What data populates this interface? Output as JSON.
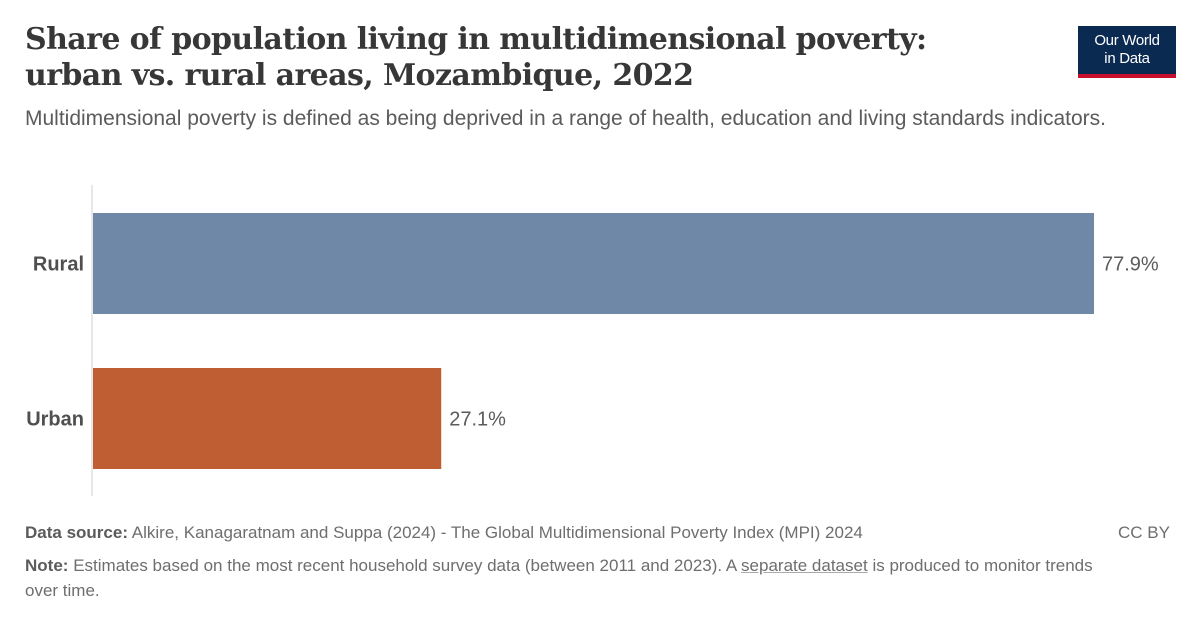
{
  "header": {
    "title": "Share of population living in multidimensional poverty: urban vs. rural areas, Mozambique, 2022",
    "subtitle": "Multidimensional poverty is defined as being deprived in a range of health, education and living standards indicators."
  },
  "logo": {
    "line1": "Our World",
    "line2": "in Data"
  },
  "footer": {
    "source_label": "Data source:",
    "source_text": "Alkire, Kanagaratnam and Suppa (2024) - The Global Multidimensional Poverty Index (MPI) 2024",
    "license": "CC BY",
    "note_label": "Note:",
    "note_text_before": "Estimates based on the most recent household survey data (between 2011 and 2023). A",
    "note_link": "separate dataset",
    "note_text_after": "is produced to monitor trends over time."
  },
  "chart_data": {
    "type": "bar",
    "orientation": "horizontal",
    "categories": [
      "Rural",
      "Urban"
    ],
    "values": [
      77.9,
      27.1
    ],
    "value_labels": [
      "77.9%",
      "27.1%"
    ],
    "colors": [
      "#6f88a8",
      "#c05e33"
    ],
    "xlim": [
      0,
      77.9
    ],
    "grid": false
  }
}
